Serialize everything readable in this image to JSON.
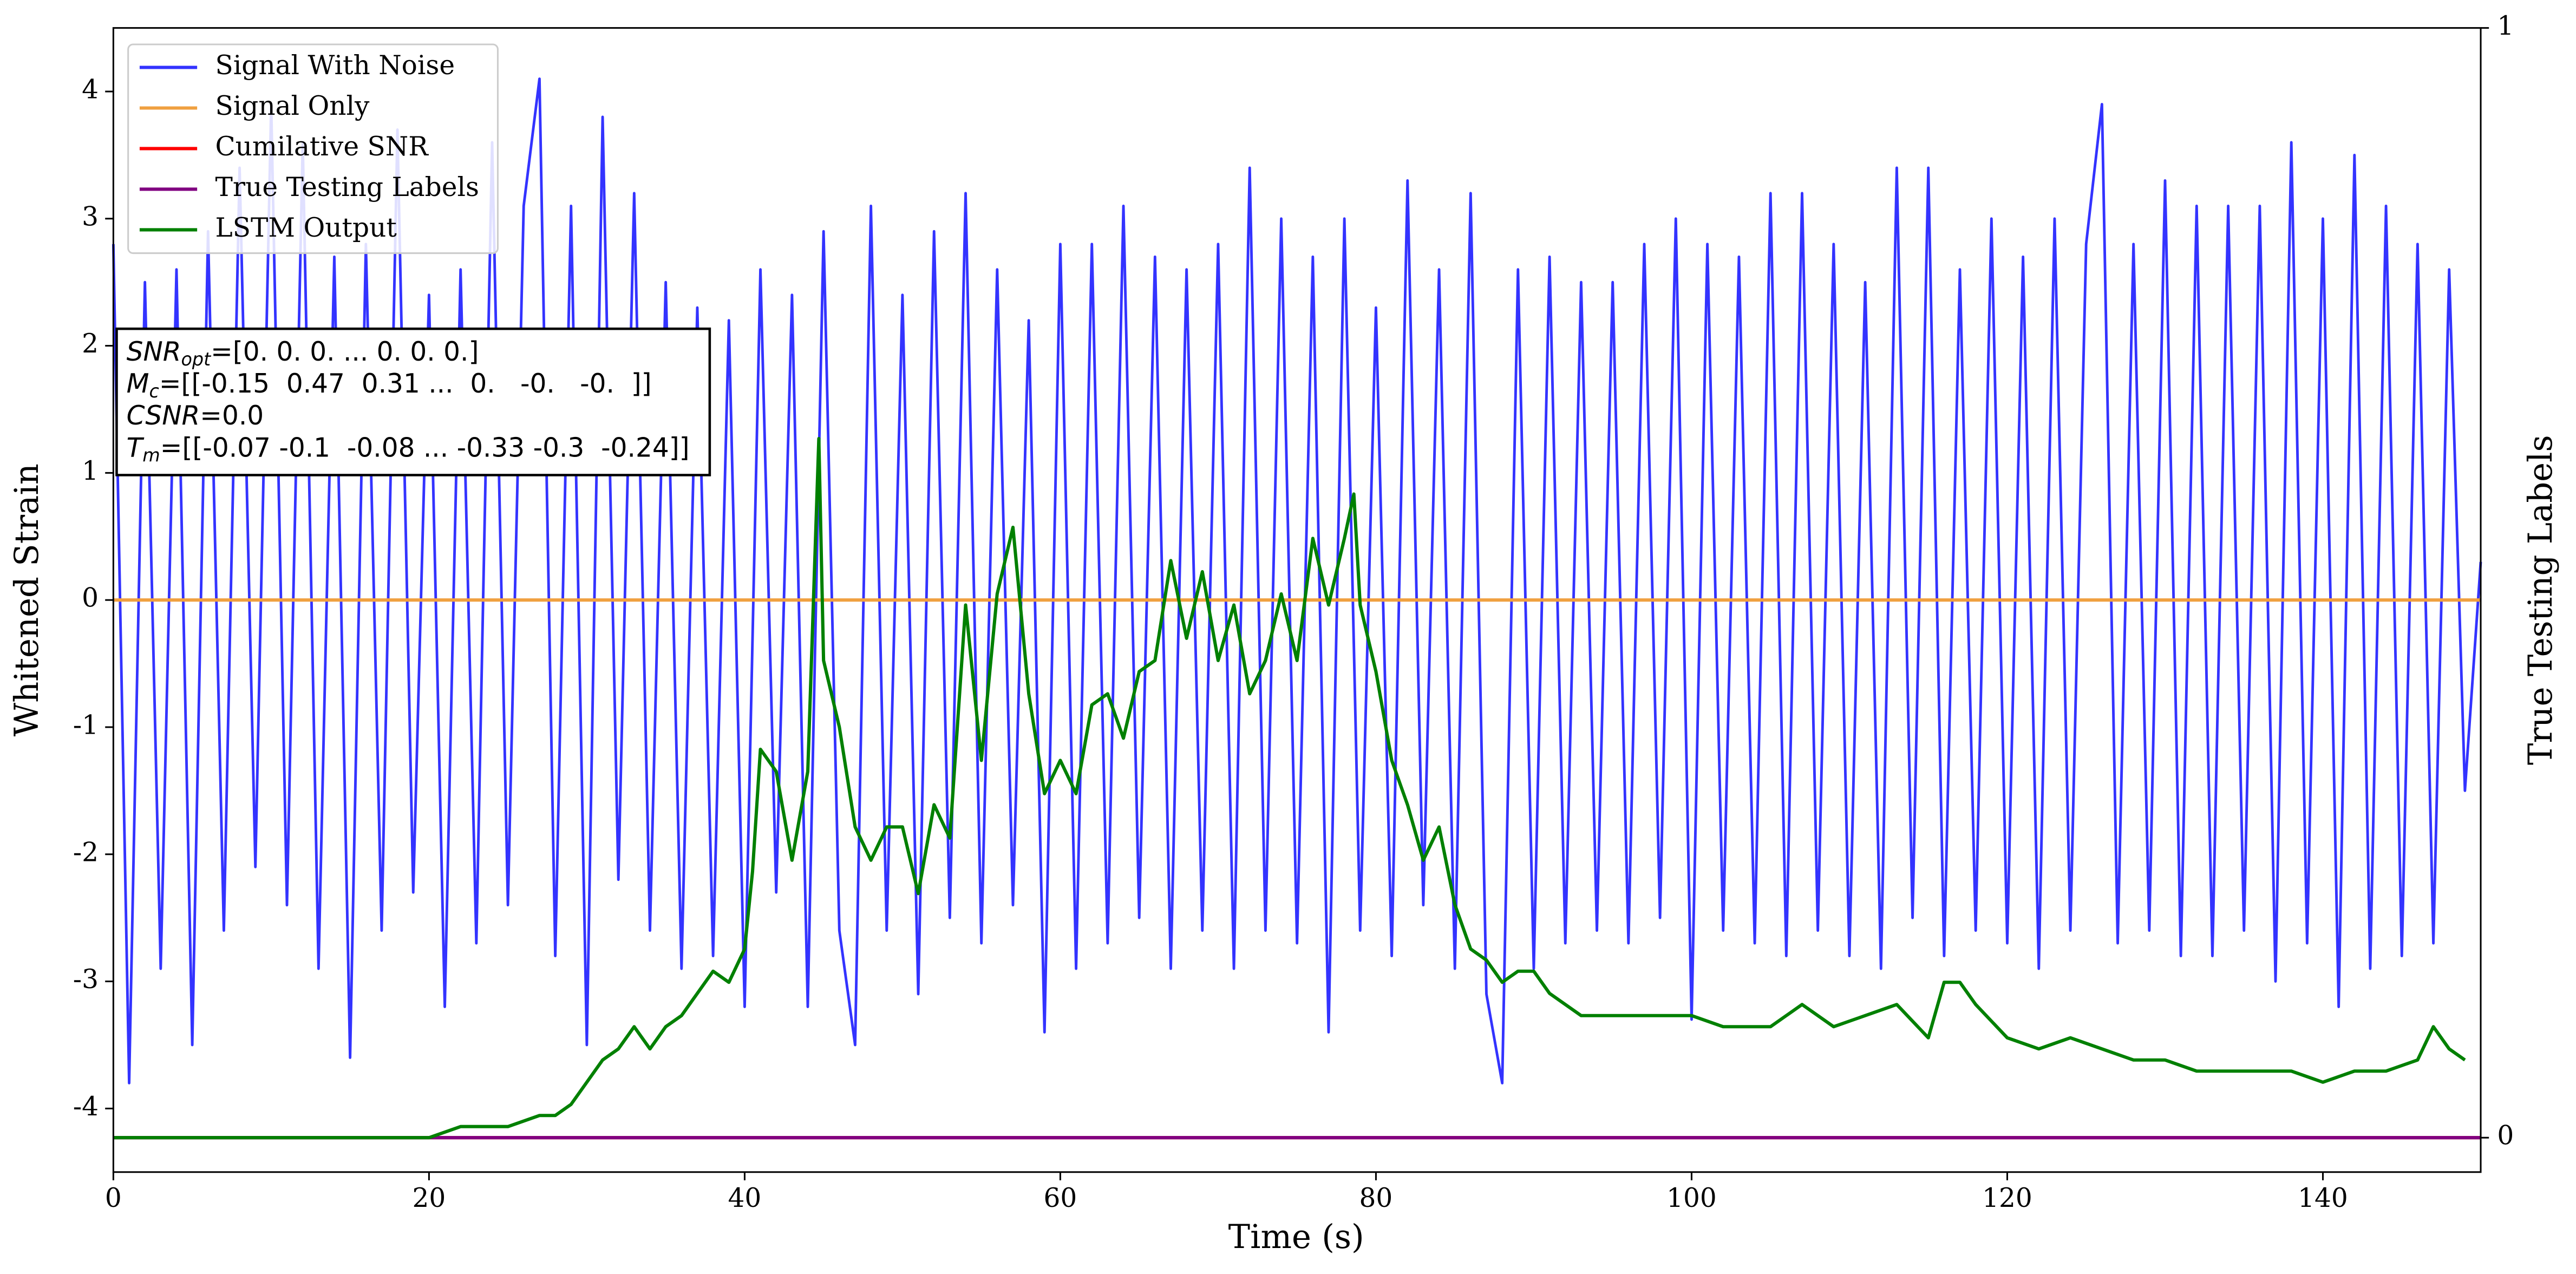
{
  "chart_data": {
    "type": "line",
    "xlabel": "Time (s)",
    "ylabel": "Whitened Strain",
    "y2label": "True Testing Labels",
    "xlim": [
      0,
      150
    ],
    "xticks": [
      0,
      20,
      40,
      60,
      80,
      100,
      120,
      140
    ],
    "ylim": [
      -4.5,
      4.5
    ],
    "yticks": [
      -4,
      -3,
      -2,
      -1,
      0,
      1,
      2,
      3,
      4
    ],
    "y2lim": [
      -0.031,
      1
    ],
    "y2ticks": [
      0,
      1
    ],
    "legend": "upper left",
    "annotations": [
      {
        "symbol": "SNR",
        "sub": "opt",
        "text": "=[0. 0. 0. ... 0. 0. 0.]"
      },
      {
        "symbol": "M",
        "sub": "c",
        "text": "=[[-0.15  0.47  0.31 ...  0.   -0.   -0.  ]]"
      },
      {
        "symbol": "CSNR",
        "text": "=0.0"
      },
      {
        "symbol": "T",
        "sub": "m",
        "text": "=[[-0.07 -0.1  -0.08 ... -0.33 -0.3  -0.24]]"
      }
    ],
    "series": [
      {
        "name": "Signal With Noise",
        "color": "#3333ff",
        "x": [
          0,
          1,
          2,
          3,
          4,
          5,
          6,
          7,
          8,
          9,
          10,
          11,
          12,
          13,
          14,
          15,
          16,
          17,
          18,
          19,
          20,
          21,
          22,
          23,
          24,
          25,
          26,
          27,
          28,
          29,
          30,
          31,
          32,
          33,
          34,
          35,
          36,
          37,
          38,
          39,
          40,
          41,
          42,
          43,
          44,
          45,
          46,
          47,
          48,
          49,
          50,
          51,
          52,
          53,
          54,
          55,
          56,
          57,
          58,
          59,
          60,
          61,
          62,
          63,
          64,
          65,
          66,
          67,
          68,
          69,
          70,
          71,
          72,
          73,
          74,
          75,
          76,
          77,
          78,
          79,
          80,
          81,
          82,
          83,
          84,
          85,
          86,
          87,
          88,
          89,
          90,
          91,
          92,
          93,
          94,
          95,
          96,
          97,
          98,
          99,
          100,
          101,
          102,
          103,
          104,
          105,
          106,
          107,
          108,
          109,
          110,
          111,
          112,
          113,
          114,
          115,
          116,
          117,
          118,
          119,
          120,
          121,
          122,
          123,
          124,
          125,
          126,
          127,
          128,
          129,
          130,
          131,
          132,
          133,
          134,
          135,
          136,
          137,
          138,
          139,
          140,
          141,
          142,
          143,
          144,
          145,
          146,
          147,
          148,
          149,
          150
        ],
        "values": [
          2.8,
          -3.8,
          2.5,
          -2.9,
          2.6,
          -3.5,
          2.9,
          -2.6,
          3.4,
          -2.1,
          3.9,
          -2.4,
          3.6,
          -2.9,
          2.7,
          -3.6,
          2.8,
          -2.6,
          3.7,
          -2.3,
          2.4,
          -3.2,
          2.6,
          -2.7,
          3.6,
          -2.4,
          3.1,
          4.1,
          -2.8,
          3.1,
          -3.5,
          3.8,
          -2.2,
          3.2,
          -2.6,
          2.5,
          -2.9,
          2.3,
          -2.8,
          2.2,
          -3.2,
          2.6,
          -2.3,
          2.4,
          -3.2,
          2.9,
          -2.6,
          -3.5,
          3.1,
          -2.6,
          2.4,
          -3.1,
          2.9,
          -2.5,
          3.2,
          -2.7,
          2.6,
          -2.4,
          2.2,
          -3.4,
          2.8,
          -2.9,
          2.8,
          -2.7,
          3.1,
          -2.5,
          2.7,
          -2.9,
          2.6,
          -2.6,
          2.8,
          -2.9,
          3.4,
          -2.6,
          3.0,
          -2.7,
          2.7,
          -3.4,
          3.0,
          -2.6,
          2.3,
          -2.8,
          3.3,
          -2.4,
          2.6,
          -2.9,
          3.2,
          -3.1,
          -3.8,
          2.6,
          -2.9,
          2.7,
          -2.7,
          2.5,
          -2.6,
          2.5,
          -2.7,
          2.8,
          -2.5,
          3.0,
          -3.3,
          2.8,
          -2.6,
          2.7,
          -2.7,
          3.2,
          -2.8,
          3.2,
          -2.6,
          2.8,
          -2.8,
          2.5,
          -2.9,
          3.4,
          -2.5,
          3.4,
          -2.8,
          2.6,
          -2.6,
          3.0,
          -2.7,
          2.7,
          -2.9,
          3.0,
          -2.6,
          2.8,
          3.9,
          -2.7,
          2.8,
          -2.6,
          3.3,
          -2.8,
          3.1,
          -2.8,
          3.1,
          -2.6,
          3.1,
          -3.0,
          3.6,
          -2.7,
          3.0,
          -3.2,
          3.5,
          -2.9,
          3.1,
          -2.8,
          2.8,
          -2.7,
          2.6,
          -1.5,
          0.3
        ]
      },
      {
        "name": "Signal Only",
        "color": "#f0a040",
        "x": [
          0,
          150
        ],
        "values": [
          0,
          0
        ]
      },
      {
        "name": "Cumilative SNR",
        "color": "#ff0000",
        "axis": "y2",
        "x": [
          0,
          150
        ],
        "values": [
          0,
          0
        ]
      },
      {
        "name": "True Testing Labels",
        "color": "#800080",
        "axis": "y2",
        "x": [
          0,
          150
        ],
        "values": [
          0,
          0
        ]
      },
      {
        "name": "LSTM Output",
        "color": "#008000",
        "axis": "y2",
        "x": [
          0,
          15,
          20,
          22,
          25,
          27,
          28,
          29,
          30,
          31,
          32,
          33,
          34,
          35,
          36,
          37,
          38,
          39,
          40,
          40.5,
          41,
          42,
          43,
          44,
          44.7,
          45,
          46,
          47,
          48,
          49,
          50,
          51,
          52,
          53,
          54,
          55,
          56,
          57,
          58,
          59,
          60,
          61,
          62,
          63,
          64,
          65,
          66,
          67,
          68,
          69,
          70,
          71,
          72,
          73,
          74,
          75,
          76,
          77,
          78,
          78.6,
          79,
          80,
          81,
          82,
          83,
          84,
          85,
          86,
          87,
          88,
          89,
          90,
          91,
          92,
          93,
          95,
          97,
          100,
          102,
          105,
          107,
          109,
          111,
          113,
          115,
          116,
          117,
          118,
          120,
          122,
          124,
          126,
          128,
          130,
          132,
          134,
          136,
          138,
          140,
          142,
          144,
          146,
          147,
          148,
          149
        ],
        "values": [
          0,
          0,
          0,
          0.01,
          0.01,
          0.02,
          0.02,
          0.03,
          0.05,
          0.07,
          0.08,
          0.1,
          0.08,
          0.1,
          0.11,
          0.13,
          0.15,
          0.14,
          0.17,
          0.24,
          0.35,
          0.33,
          0.25,
          0.33,
          0.63,
          0.43,
          0.37,
          0.28,
          0.25,
          0.28,
          0.28,
          0.22,
          0.3,
          0.27,
          0.48,
          0.34,
          0.49,
          0.55,
          0.4,
          0.31,
          0.34,
          0.31,
          0.39,
          0.4,
          0.36,
          0.42,
          0.43,
          0.52,
          0.45,
          0.51,
          0.43,
          0.48,
          0.4,
          0.43,
          0.49,
          0.43,
          0.54,
          0.48,
          0.54,
          0.58,
          0.48,
          0.42,
          0.34,
          0.3,
          0.25,
          0.28,
          0.21,
          0.17,
          0.16,
          0.14,
          0.15,
          0.15,
          0.13,
          0.12,
          0.11,
          0.11,
          0.11,
          0.11,
          0.1,
          0.1,
          0.12,
          0.1,
          0.11,
          0.12,
          0.09,
          0.14,
          0.14,
          0.12,
          0.09,
          0.08,
          0.09,
          0.08,
          0.07,
          0.07,
          0.06,
          0.06,
          0.06,
          0.06,
          0.05,
          0.06,
          0.06,
          0.07,
          0.1,
          0.08,
          0.07
        ]
      }
    ]
  }
}
